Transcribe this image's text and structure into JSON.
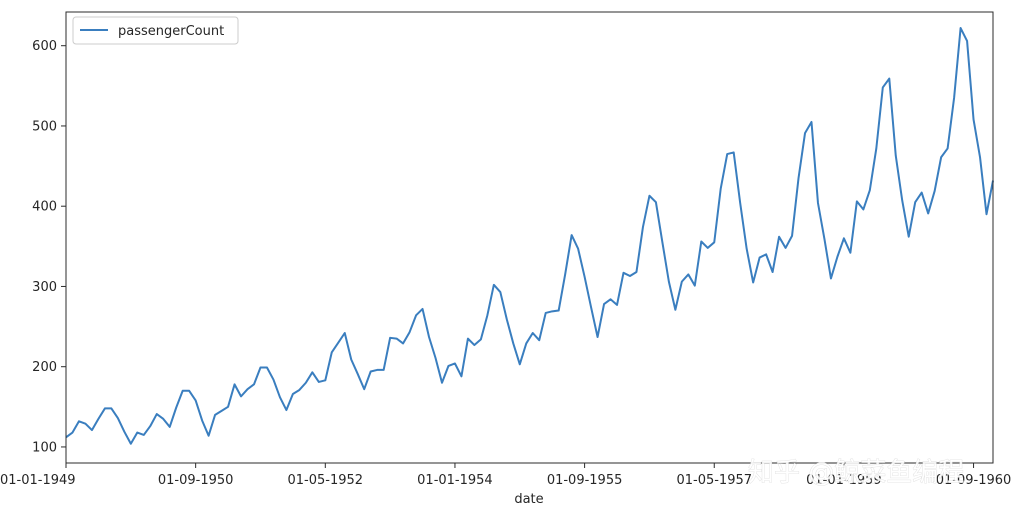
{
  "chart_data": {
    "type": "line",
    "xlabel": "date",
    "ylabel": "",
    "legend": {
      "position": "top-left",
      "entries": [
        "passengerCount"
      ]
    },
    "grid": false,
    "x_tick_labels": [
      "01-01-1949",
      "01-09-1950",
      "01-05-1952",
      "01-01-1954",
      "01-09-1955",
      "01-05-1957",
      "01-01-1959",
      "01-09-1960"
    ],
    "y_ticks": [
      100,
      200,
      300,
      400,
      500,
      600
    ],
    "ylim": [
      80,
      642
    ],
    "xlim": [
      "1949-01",
      "1960-12"
    ],
    "series": [
      {
        "name": "passengerCount",
        "color": "#3a7ebf",
        "x_start": "1949-01",
        "frequency": "monthly",
        "values": [
          112,
          118,
          132,
          129,
          121,
          135,
          148,
          148,
          136,
          119,
          104,
          118,
          115,
          126,
          141,
          135,
          125,
          149,
          170,
          170,
          158,
          133,
          114,
          140,
          145,
          150,
          178,
          163,
          172,
          178,
          199,
          199,
          184,
          162,
          146,
          166,
          171,
          180,
          193,
          181,
          183,
          218,
          230,
          242,
          209,
          191,
          172,
          194,
          196,
          196,
          236,
          235,
          229,
          243,
          264,
          272,
          237,
          211,
          180,
          201,
          204,
          188,
          235,
          227,
          234,
          264,
          302,
          293,
          259,
          229,
          203,
          229,
          242,
          233,
          267,
          269,
          270,
          315,
          364,
          347,
          312,
          274,
          237,
          278,
          284,
          277,
          317,
          313,
          318,
          374,
          413,
          405,
          355,
          306,
          271,
          306,
          315,
          301,
          356,
          348,
          355,
          422,
          465,
          467,
          404,
          347,
          305,
          336,
          340,
          318,
          362,
          348,
          363,
          435,
          491,
          505,
          404,
          359,
          310,
          337,
          360,
          342,
          406,
          396,
          420,
          472,
          548,
          559,
          463,
          407,
          362,
          405,
          417,
          391,
          419,
          461,
          472,
          535,
          622,
          606,
          508,
          461,
          390,
          432
        ]
      }
    ]
  },
  "watermark": {
    "text": "知乎 @鲸菜鱼编程"
  }
}
